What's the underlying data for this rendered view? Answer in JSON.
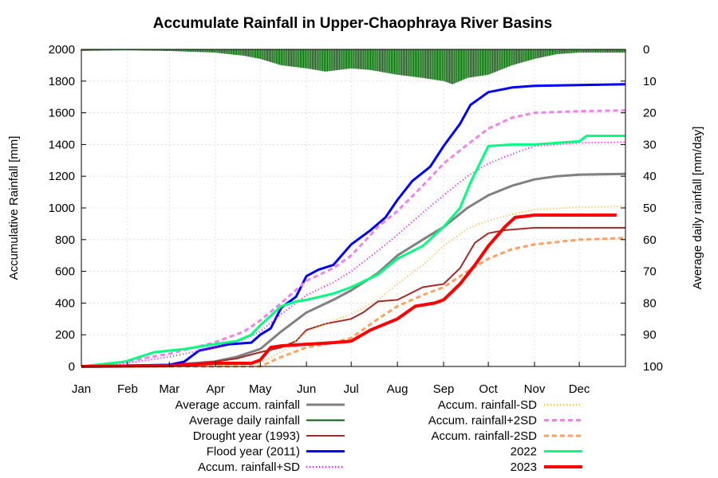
{
  "chart_data": {
    "type": "line",
    "title": "Accumulate Rainfall in Upper-Chaophraya River Basins",
    "ylabel": "Accumulative Rainfall [mm]",
    "y2label": "Average daily rainfall [mm/day]",
    "ylim": [
      0,
      2000
    ],
    "y2lim": [
      100,
      0
    ],
    "yticks": [
      0,
      200,
      400,
      600,
      800,
      1000,
      1200,
      1400,
      1600,
      1800,
      2000
    ],
    "y2ticks": [
      100,
      90,
      80,
      70,
      60,
      50,
      40,
      30,
      20,
      10,
      0
    ],
    "xlim": [
      1,
      366
    ],
    "months": [
      "Jan",
      "Feb",
      "Mar",
      "Apr",
      "May",
      "Jun",
      "Jul",
      "Aug",
      "Sep",
      "Oct",
      "Nov",
      "Dec"
    ],
    "month_start_day": [
      1,
      32,
      60,
      91,
      121,
      152,
      182,
      213,
      244,
      274,
      305,
      335
    ],
    "grid": true,
    "legend_position": "bottom",
    "colors": {
      "average": "#808080",
      "daily": "#006400",
      "drought": "#A52A2A",
      "flood": "#0000FF",
      "plus_sd": "#EE00EE",
      "minus_sd": "#FFB733",
      "plus_2sd": "#EE82EE",
      "minus_2sd": "#FFA060",
      "y2022": "#00FF7F",
      "y2023": "#FF0000"
    },
    "series": [
      {
        "key": "average",
        "name": "Average accum. rainfall",
        "style": "solid",
        "width": 3,
        "x": [
          1,
          60,
          90,
          105,
          121,
          135,
          152,
          170,
          182,
          200,
          213,
          230,
          244,
          260,
          274,
          290,
          305,
          320,
          335,
          366
        ],
        "y": [
          0,
          10,
          30,
          60,
          110,
          220,
          340,
          420,
          480,
          590,
          700,
          800,
          880,
          1000,
          1080,
          1140,
          1180,
          1200,
          1210,
          1215
        ]
      },
      {
        "key": "daily",
        "name": "Average daily rainfall",
        "style": "bar",
        "width": 2,
        "x": [
          1,
          30,
          60,
          90,
          110,
          121,
          135,
          152,
          165,
          182,
          195,
          213,
          230,
          244,
          250,
          260,
          274,
          290,
          305,
          320,
          335,
          350,
          366
        ],
        "y": [
          0.5,
          0.3,
          0.5,
          1,
          2,
          3,
          5,
          6,
          7,
          6,
          6.5,
          8,
          9,
          10,
          11,
          9,
          8,
          5,
          3,
          1.5,
          1,
          1,
          1
        ]
      },
      {
        "key": "drought",
        "name": "Drought year (1993)",
        "style": "solid",
        "width": 2,
        "x": [
          1,
          60,
          90,
          105,
          121,
          135,
          145,
          152,
          165,
          182,
          190,
          200,
          213,
          230,
          244,
          255,
          265,
          274,
          285,
          305,
          335,
          366
        ],
        "y": [
          0,
          5,
          30,
          50,
          90,
          120,
          160,
          230,
          270,
          300,
          340,
          410,
          420,
          500,
          520,
          620,
          780,
          840,
          860,
          875,
          875,
          875
        ]
      },
      {
        "key": "flood",
        "name": "Flood year (2011)",
        "style": "solid",
        "width": 3,
        "x": [
          1,
          60,
          70,
          80,
          90,
          100,
          115,
          121,
          128,
          135,
          145,
          152,
          160,
          170,
          182,
          195,
          205,
          213,
          223,
          235,
          244,
          255,
          262,
          274,
          290,
          305,
          335,
          366
        ],
        "y": [
          0,
          10,
          30,
          100,
          120,
          140,
          150,
          200,
          240,
          370,
          440,
          570,
          610,
          640,
          770,
          860,
          940,
          1050,
          1170,
          1260,
          1390,
          1530,
          1650,
          1730,
          1760,
          1770,
          1775,
          1780
        ]
      },
      {
        "key": "plus_sd",
        "name": "Accum. rainfall+SD",
        "style": "dotted",
        "width": 2,
        "x": [
          1,
          30,
          60,
          90,
          110,
          121,
          135,
          152,
          170,
          182,
          200,
          213,
          230,
          244,
          260,
          274,
          290,
          305,
          335,
          366
        ],
        "y": [
          0,
          20,
          60,
          120,
          170,
          220,
          330,
          450,
          530,
          600,
          730,
          830,
          970,
          1080,
          1200,
          1280,
          1340,
          1390,
          1410,
          1415
        ]
      },
      {
        "key": "minus_sd",
        "name": "Accum. rainfall-SD",
        "style": "dotted",
        "width": 2,
        "x": [
          1,
          90,
          121,
          140,
          152,
          170,
          182,
          200,
          213,
          230,
          244,
          260,
          274,
          290,
          305,
          335,
          366
        ],
        "y": [
          0,
          5,
          20,
          120,
          220,
          290,
          330,
          420,
          520,
          640,
          760,
          870,
          920,
          960,
          990,
          1005,
          1010
        ]
      },
      {
        "key": "plus_2sd",
        "name": "Accum. rainfall+2SD",
        "style": "dashed",
        "width": 3,
        "x": [
          1,
          30,
          60,
          90,
          110,
          121,
          135,
          152,
          170,
          182,
          200,
          213,
          230,
          244,
          260,
          274,
          290,
          305,
          335,
          366
        ],
        "y": [
          0,
          30,
          80,
          150,
          220,
          290,
          400,
          540,
          620,
          700,
          880,
          980,
          1140,
          1280,
          1400,
          1500,
          1570,
          1600,
          1610,
          1615
        ]
      },
      {
        "key": "minus_2sd",
        "name": "Accum. rainfall-2SD",
        "style": "dashed",
        "width": 3,
        "x": [
          1,
          121,
          135,
          152,
          170,
          182,
          200,
          213,
          230,
          244,
          260,
          274,
          290,
          305,
          335,
          366
        ],
        "y": [
          0,
          0,
          60,
          120,
          150,
          180,
          300,
          380,
          450,
          500,
          600,
          680,
          740,
          770,
          800,
          810
        ]
      },
      {
        "key": "y2022",
        "name": "2022",
        "style": "solid",
        "width": 3,
        "x": [
          1,
          30,
          50,
          70,
          90,
          105,
          115,
          121,
          135,
          145,
          152,
          170,
          182,
          200,
          213,
          230,
          244,
          255,
          262,
          274,
          290,
          305,
          335,
          340,
          366
        ],
        "y": [
          0,
          30,
          90,
          110,
          140,
          160,
          200,
          260,
          380,
          410,
          420,
          460,
          500,
          580,
          680,
          760,
          880,
          1000,
          1160,
          1390,
          1400,
          1400,
          1420,
          1455,
          1455
        ]
      },
      {
        "key": "y2023",
        "name": "2023",
        "style": "solid",
        "width": 4,
        "x": [
          1,
          60,
          90,
          115,
          121,
          128,
          135,
          152,
          170,
          182,
          195,
          213,
          225,
          238,
          244,
          255,
          265,
          274,
          285,
          292,
          305,
          335,
          360
        ],
        "y": [
          0,
          5,
          20,
          20,
          40,
          120,
          130,
          140,
          150,
          160,
          230,
          300,
          380,
          400,
          420,
          520,
          640,
          760,
          880,
          940,
          955,
          955,
          955
        ]
      }
    ]
  }
}
